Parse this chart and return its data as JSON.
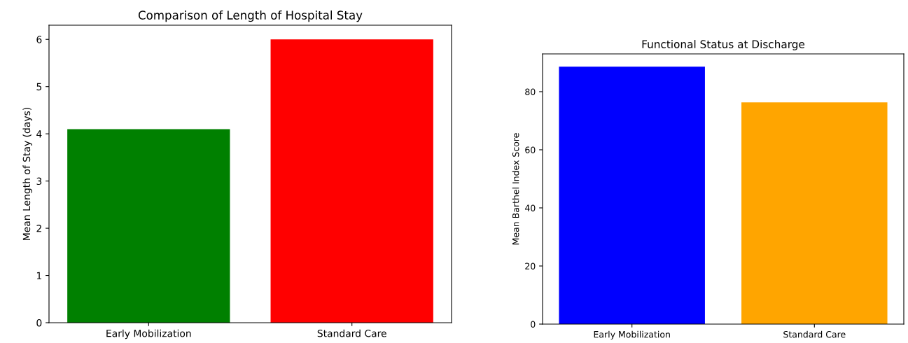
{
  "chart_data": [
    {
      "type": "bar",
      "title": "Comparison of Length of Hospital Stay",
      "ylabel": "Mean Length of Stay (days)",
      "categories": [
        "Early Mobilization",
        "Standard Care"
      ],
      "values": [
        4.1,
        6.0
      ],
      "colors": [
        "#008000",
        "#ff0000"
      ],
      "ylim": [
        0,
        6.3
      ],
      "yticks": [
        0,
        1,
        2,
        3,
        4,
        5,
        6
      ]
    },
    {
      "type": "bar",
      "title": "Functional Status at Discharge",
      "ylabel": "Mean Barthel Index Score",
      "categories": [
        "Early Mobilization",
        "Standard Care"
      ],
      "values": [
        88.6,
        76.3
      ],
      "colors": [
        "#0000ff",
        "#ffa500"
      ],
      "ylim": [
        0,
        93
      ],
      "yticks": [
        0,
        20,
        40,
        60,
        80
      ]
    }
  ]
}
